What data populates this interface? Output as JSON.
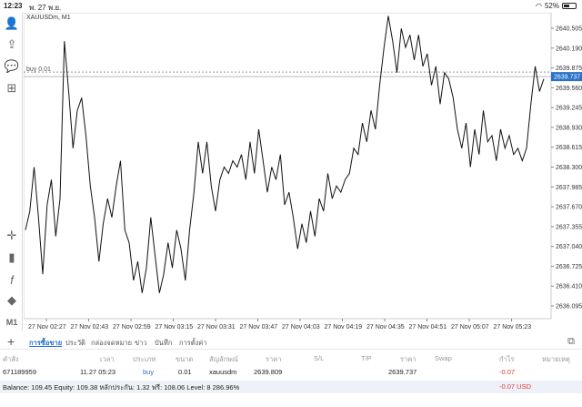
{
  "status_bar": {
    "time": "12:23",
    "date": "พ. 27 พ.ย.",
    "battery": "52%",
    "battery_level": 0.52
  },
  "toolbar": {
    "items": [
      "user-icon",
      "trade-share-icon",
      "chat-icon",
      "add-chart-icon",
      "crosshair-icon",
      "candles-icon",
      "indicator-icon",
      "objects-icon",
      "timeframe"
    ],
    "timeframe_label": "M1"
  },
  "chart": {
    "symbol_label": "XAUUSDm, M1",
    "buy_label": "buy 0.01",
    "current_price": "2639.737",
    "y_labels": [
      "2640.505",
      "2640.190",
      "2639.875",
      "2639.560",
      "2639.245",
      "2638.930",
      "2638.615",
      "2638.300",
      "2637.985",
      "2637.670",
      "2637.355",
      "2637.040",
      "2636.725",
      "2636.410",
      "2636.095"
    ],
    "x_labels": [
      "27 Nov 02:27",
      "27 Nov 02:43",
      "27 Nov 02:59",
      "27 Nov 03:15",
      "27 Nov 03:31",
      "27 Nov 03:47",
      "27 Nov 04:03",
      "27 Nov 04:19",
      "27 Nov 04:35",
      "27 Nov 04:51",
      "27 Nov 05:07",
      "27 Nov 05:23"
    ]
  },
  "chart_data": {
    "type": "line",
    "series": [
      {
        "values": [
          2637.3,
          2637.6,
          2638.3,
          2637.5,
          2636.6,
          2637.7,
          2638.1,
          2637.2,
          2637.8,
          2640.3,
          2639.5,
          2638.6,
          2639.2,
          2639.4,
          2638.8,
          2638.0,
          2637.5,
          2636.8,
          2637.4,
          2637.8,
          2637.5,
          2638.0,
          2638.4,
          2637.3,
          2637.1,
          2636.5,
          2636.8,
          2636.3,
          2636.7,
          2637.5,
          2636.9,
          2636.3,
          2636.6,
          2637.1,
          2636.7,
          2637.3,
          2637.0,
          2636.5,
          2637.3,
          2637.9,
          2638.7,
          2638.2,
          2638.7,
          2638.0,
          2637.6,
          2638.1,
          2638.3,
          2638.2,
          2638.4,
          2638.3,
          2638.5,
          2638.1,
          2638.7,
          2638.2,
          2638.9,
          2638.4,
          2637.9,
          2638.3,
          2638.1,
          2638.5,
          2637.7,
          2637.9,
          2637.5,
          2637.0,
          2637.4,
          2637.1,
          2637.6,
          2637.2,
          2637.8,
          2637.6,
          2638.2,
          2637.8,
          2638.0,
          2637.9,
          2638.1,
          2638.2,
          2638.6,
          2638.5,
          2639.0,
          2638.7,
          2639.2,
          2638.9,
          2639.6,
          2640.2,
          2640.7,
          2640.3,
          2639.8,
          2640.5,
          2640.2,
          2640.4,
          2640.0,
          2640.4,
          2639.9,
          2640.1,
          2639.6,
          2639.9,
          2639.3,
          2639.8,
          2639.7,
          2639.4,
          2638.9,
          2638.6,
          2639.0,
          2638.3,
          2638.9,
          2638.5,
          2639.2,
          2638.7,
          2638.8,
          2638.4,
          2638.9,
          2638.6,
          2638.8,
          2638.5,
          2638.6,
          2638.4,
          2638.6,
          2639.3,
          2639.9,
          2639.5,
          2639.7
        ]
      }
    ],
    "ylim": [
      2636.0,
      2640.7
    ],
    "x_tick_labels": [
      "27 Nov 02:27",
      "27 Nov 02:43",
      "27 Nov 02:59",
      "27 Nov 03:15",
      "27 Nov 03:31",
      "27 Nov 03:47",
      "27 Nov 04:03",
      "27 Nov 04:19",
      "27 Nov 04:35",
      "27 Nov 04:51",
      "27 Nov 05:07",
      "27 Nov 05:23"
    ],
    "y_tick_labels": [
      "2640.505",
      "2640.190",
      "2639.875",
      "2639.560",
      "2639.245",
      "2638.930",
      "2638.615",
      "2638.300",
      "2637.985",
      "2637.670",
      "2637.355",
      "2637.040",
      "2636.725",
      "2636.410",
      "2636.095"
    ],
    "buy_level": 2639.809,
    "current_price": 2639.737,
    "grid": false
  },
  "tabs": {
    "items": [
      "การซื้อขาย",
      "ประวัติ",
      "กล่องจดหมาย",
      "ข่าว",
      "บันทึก",
      "การตั้งค่า"
    ],
    "active": "การซื้อขาย"
  },
  "table": {
    "headers": [
      "คำสั่ง",
      "เวลา",
      "ประเภท",
      "ขนาด",
      "สัญลักษณ์",
      "ราคา",
      "S/L",
      "T/P",
      "ราคา",
      "Swap",
      "กำไร",
      "หมายเหตุ"
    ],
    "row": {
      "order": "671189959",
      "time": "11.27 05:23",
      "type": "buy",
      "size": "0.01",
      "symbol": "xauusdm",
      "price": "2639.809",
      "sl": "",
      "tp": "",
      "current": "2639.737",
      "swap": "",
      "profit": "-0.07",
      "note": ""
    }
  },
  "footer": {
    "balance_text": "Balance: 109.45 Equity: 109.38 หลักประกัน: 1.32 ฟรี: 108.06 Level: 8 286.96%",
    "profit_text": "-0.07  USD"
  },
  "colors": {
    "accent": "#2a72c8",
    "loss": "#e23a3a",
    "price_tag": "#2a72c8"
  }
}
